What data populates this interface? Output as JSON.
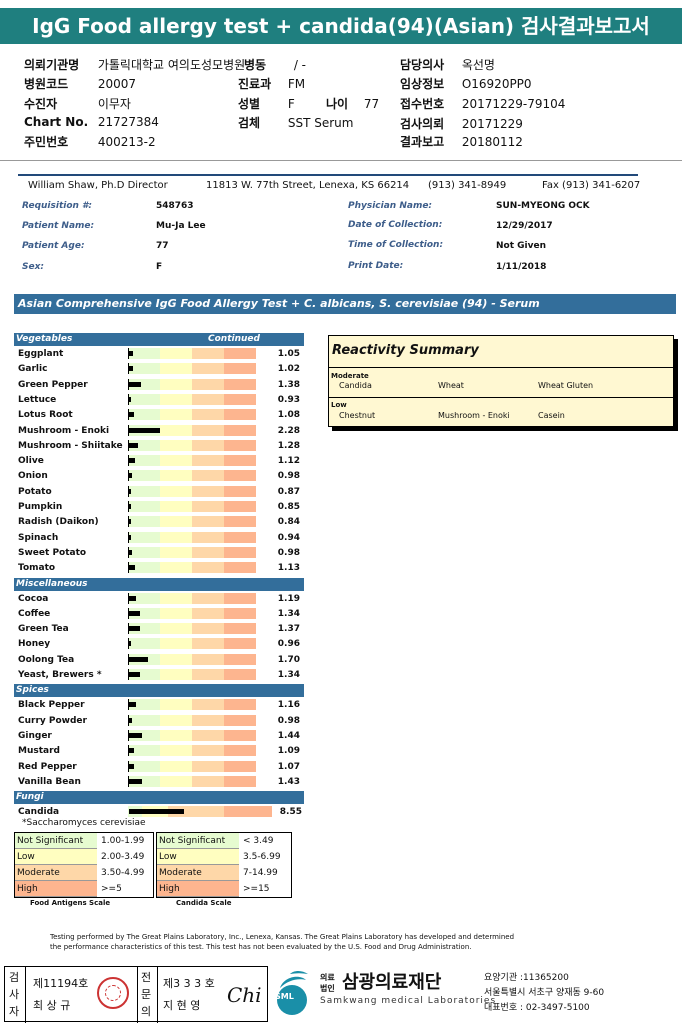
{
  "report_title": "IgG Food allergy test + candida(94)(Asian) 검사결과보고서",
  "header": {
    "institution_label": "의뢰기관명",
    "institution_value": "가톨릭대학교 여의도성모병원",
    "ward_label": "병동",
    "ward_value": "/ -",
    "doctor_label": "담당의사",
    "doctor_value": "옥선명",
    "hospital_code_label": "병원코드",
    "hospital_code_value": "20007",
    "dept_label": "진료과",
    "dept_value": "FM",
    "clinical_info_label": "임상정보",
    "clinical_info_value": "O16920PP0",
    "patient_label": "수진자",
    "patient_value": "이무자",
    "sex_label": "성별",
    "sex_value": "F",
    "age_label": "나이",
    "age_value": "77",
    "receipt_no_label": "접수번호",
    "receipt_no_value": "20171229-79104",
    "chart_label": "Chart No.",
    "chart_value": "21727384",
    "specimen_label": "검체",
    "specimen_value": "SST Serum",
    "request_label": "검사의뢰",
    "request_value": "20171229",
    "id_label": "주민번호",
    "id_value": "400213-2",
    "report_label": "결과보고",
    "report_value": "20180112"
  },
  "lab": {
    "director": "William Shaw, Ph.D  Director",
    "address": "11813 W. 77th Street, Lenexa, KS 66214",
    "phone": "(913) 341-8949",
    "fax": "Fax (913) 341-6207"
  },
  "patient_info": {
    "requisition_label": "Requisition #:",
    "requisition_value": "548763",
    "physician_label": "Physician Name:",
    "physician_value": "SUN-MYEONG OCK",
    "name_label": "Patient Name:",
    "name_value": "Mu-Ja Lee",
    "collection_date_label": "Date of Collection:",
    "collection_date_value": "12/29/2017",
    "age_label": "Patient Age:",
    "age_value": "77",
    "collection_time_label": "Time of Collection:",
    "collection_time_value": "Not Given",
    "sex_label": "Sex:",
    "sex_value": "F",
    "print_date_label": "Print Date:",
    "print_date_value": "1/11/2018"
  },
  "test_title": "Asian Comprehensive IgG Food Allergy Test + C. albicans, S. cerevisiae (94) - Serum",
  "categories": [
    {
      "name": "Vegetables",
      "continued": "Continued",
      "items": [
        {
          "name": "Eggplant",
          "value": "1.05",
          "level": 1.05
        },
        {
          "name": "Garlic",
          "value": "1.02",
          "level": 1.02
        },
        {
          "name": "Green Pepper",
          "value": "1.38",
          "level": 1.38
        },
        {
          "name": "Lettuce",
          "value": "0.93",
          "level": 0.93
        },
        {
          "name": "Lotus Root",
          "value": "1.08",
          "level": 1.08
        },
        {
          "name": "Mushroom - Enoki",
          "value": "2.28",
          "level": 2.28
        },
        {
          "name": "Mushroom - Shiitake",
          "value": "1.28",
          "level": 1.28
        },
        {
          "name": "Olive",
          "value": "1.12",
          "level": 1.12
        },
        {
          "name": "Onion",
          "value": "0.98",
          "level": 0.98
        },
        {
          "name": "Potato",
          "value": "0.87",
          "level": 0.87
        },
        {
          "name": "Pumpkin",
          "value": "0.85",
          "level": 0.85
        },
        {
          "name": "Radish (Daikon)",
          "value": "0.84",
          "level": 0.84
        },
        {
          "name": "Spinach",
          "value": "0.94",
          "level": 0.94
        },
        {
          "name": "Sweet Potato",
          "value": "0.98",
          "level": 0.98
        },
        {
          "name": "Tomato",
          "value": "1.13",
          "level": 1.13
        }
      ]
    },
    {
      "name": "Miscellaneous",
      "continued": "",
      "items": [
        {
          "name": "Cocoa",
          "value": "1.19",
          "level": 1.19
        },
        {
          "name": "Coffee",
          "value": "1.34",
          "level": 1.34
        },
        {
          "name": "Green Tea",
          "value": "1.37",
          "level": 1.37
        },
        {
          "name": "Honey",
          "value": "0.96",
          "level": 0.96
        },
        {
          "name": "Oolong Tea",
          "value": "1.70",
          "level": 1.7
        },
        {
          "name": "Yeast, Brewers *",
          "value": "1.34",
          "level": 1.34
        }
      ]
    },
    {
      "name": "Spices",
      "continued": "",
      "items": [
        {
          "name": "Black Pepper",
          "value": "1.16",
          "level": 1.16
        },
        {
          "name": "Curry Powder",
          "value": "0.98",
          "level": 0.98
        },
        {
          "name": "Ginger",
          "value": "1.44",
          "level": 1.44
        },
        {
          "name": "Mustard",
          "value": "1.09",
          "level": 1.09
        },
        {
          "name": "Red Pepper",
          "value": "1.07",
          "level": 1.07
        },
        {
          "name": "Vanilla Bean",
          "value": "1.43",
          "level": 1.43
        }
      ]
    },
    {
      "name": "Fungi",
      "continued": "",
      "items": [
        {
          "name": "Candida",
          "value": "8.55",
          "level": 8.55,
          "candida": true
        }
      ]
    }
  ],
  "footnote_saccharomyces": "*Saccharomyces cerevisiae",
  "reactivity": {
    "title": "Reactivity Summary",
    "moderate_label": "Moderate",
    "moderate_items": [
      "Candida",
      "Wheat",
      "Wheat Gluten"
    ],
    "low_label": "Low",
    "low_items": [
      "Chestnut",
      "Mushroom - Enoki",
      "Casein"
    ]
  },
  "legend_food": {
    "caption": "Food Antigens Scale",
    "rows": [
      {
        "label": "Not Significant",
        "range": "1.00-1.99",
        "color": "#e6fbd0"
      },
      {
        "label": "Low",
        "range": "2.00-3.49",
        "color": "#fffec0"
      },
      {
        "label": "Moderate",
        "range": "3.50-4.99",
        "color": "#fed7a8"
      },
      {
        "label": "High",
        "range": ">=5",
        "color": "#fdb58f"
      }
    ]
  },
  "legend_candida": {
    "caption": "Candida Scale",
    "rows": [
      {
        "label": "Not Significant",
        "range": "< 3.49",
        "color": "#e6fbd0"
      },
      {
        "label": "Low",
        "range": "3.5-6.99",
        "color": "#fffec0"
      },
      {
        "label": "Moderate",
        "range": "7-14.99",
        "color": "#fed7a8"
      },
      {
        "label": "High",
        "range": ">=15",
        "color": "#fdb58f"
      }
    ]
  },
  "disclaimer_1": "Testing performed by The Great Plains Laboratory, Inc., Lenexa, Kansas.  The Great Plains Laboratory has developed and determined",
  "disclaimer_2": "the performance characteristics of this test.  This test has not been evaluated by the U.S. Food and Drug Administration.",
  "footer": {
    "examiner_label": "검사자",
    "examiner_no": "제11194호",
    "examiner_name": "최 상 규",
    "specialist_label": "전문의",
    "specialist_no": "제3 3 3 호",
    "specialist_name": "지 현 영",
    "signature": "Chi",
    "logo_text": "SML",
    "corp_small_1": "의료",
    "corp_small_2": "법인",
    "corp_name": "삼광의료재단",
    "corp_name_en": "Samkwang medical Laboratories",
    "org_code": "요양기관 :11365200",
    "address": "서울특별시 서초구 양재동 9-60",
    "phone": "대표번호 : 02-3497-5100"
  }
}
